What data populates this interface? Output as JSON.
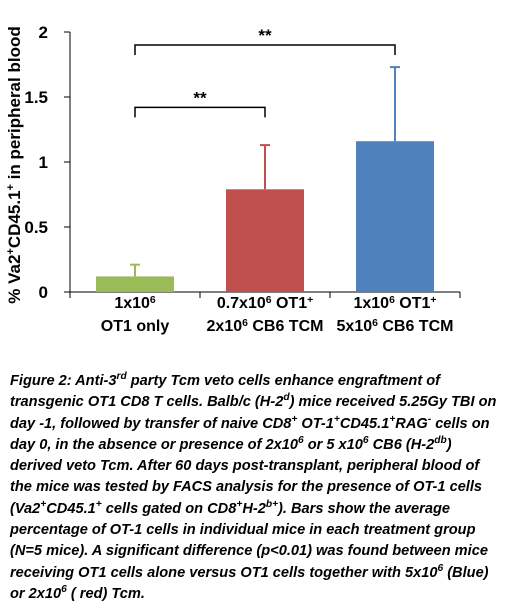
{
  "chart_data": {
    "type": "bar",
    "ylabel": "% Va2+CD45.1+ in peripheral blood",
    "ylabel_parts": [
      {
        "text": "% Va2",
        "sup": false
      },
      {
        "text": "+",
        "sup": true
      },
      {
        "text": "CD45.1",
        "sup": false
      },
      {
        "text": "+",
        "sup": true
      },
      {
        "text": " in peripheral blood",
        "sup": false
      }
    ],
    "ylim": [
      0,
      2
    ],
    "yticks": [
      "0",
      "0.5",
      "1",
      "1.5",
      "2"
    ],
    "grid": false,
    "categories": [
      {
        "line1": "1x10",
        "line1_sup": "6",
        "line1_tail": "",
        "line2": "OT1 only",
        "line2_sup": "",
        "line2_tail": ""
      },
      {
        "line1": "0.7x10",
        "line1_sup": "6",
        "line1_tail": " OT1",
        "line1_sup2": "+",
        "line2": "2x10",
        "line2_sup": "6",
        "line2_tail": " CB6 TCM"
      },
      {
        "line1": "1x10",
        "line1_sup": "6",
        "line1_tail": " OT1",
        "line1_sup2": "+",
        "line2": "5x10",
        "line2_sup": "6",
        "line2_tail": " CB6 TCM"
      }
    ],
    "values": [
      0.12,
      0.79,
      1.16
    ],
    "errors": [
      0.09,
      0.34,
      0.57
    ],
    "colors": [
      "#9bbb59",
      "#c0504d",
      "#4f81bd"
    ],
    "annotations": [
      {
        "from": 0,
        "to": 1,
        "label": "**",
        "y": 1.42
      },
      {
        "from": 0,
        "to": 2,
        "label": "**",
        "y": 1.9
      }
    ]
  },
  "caption": {
    "lines": [
      [
        {
          "t": "Figure 2: Anti-3"
        },
        {
          "t": "rd",
          "sup": true
        },
        {
          "t": " party Tcm veto cells enhance engraftment of"
        }
      ],
      [
        {
          "t": "transgenic OT1 CD8 T cells. Balb/c (H-2"
        },
        {
          "t": "d",
          "sup": true
        },
        {
          "t": ") mice received 5.25Gy TBI on"
        }
      ],
      [
        {
          "t": "day -1, followed by transfer of naive CD8"
        },
        {
          "t": "+",
          "sup": true
        },
        {
          "t": " OT-1"
        },
        {
          "t": "+",
          "sup": true
        },
        {
          "t": "CD45.1"
        },
        {
          "t": "+",
          "sup": true
        },
        {
          "t": "RAG"
        },
        {
          "t": "-",
          "sup": true
        },
        {
          "t": " cells on"
        }
      ],
      [
        {
          "t": "day 0, in the absence or presence of  2x10"
        },
        {
          "t": "6",
          "sup": true
        },
        {
          "t": " or 5 x10"
        },
        {
          "t": "6",
          "sup": true
        },
        {
          "t": " CB6 (H-2"
        },
        {
          "t": "db",
          "sup": true
        },
        {
          "t": ")"
        }
      ],
      [
        {
          "t": "derived veto Tcm. After 60 days post-transplant, peripheral blood of"
        }
      ],
      [
        {
          "t": "the mice was tested by FACS analysis for the presence of OT-1 cells"
        }
      ],
      [
        {
          "t": "(Va2"
        },
        {
          "t": "+",
          "sup": true
        },
        {
          "t": "CD45.1"
        },
        {
          "t": "+",
          "sup": true
        },
        {
          "t": " cells gated on CD8"
        },
        {
          "t": "+",
          "sup": true
        },
        {
          "t": "H-2"
        },
        {
          "t": "b+",
          "sup": true
        },
        {
          "t": "). Bars show the average"
        }
      ],
      [
        {
          "t": "percentage of OT-1 cells in individual mice in each treatment group"
        }
      ],
      [
        {
          "t": "(N=5 mice). A significant difference (p<0.01) was found between mice"
        }
      ],
      [
        {
          "t": "receiving OT1 cells alone versus OT1 cells together with 5x10"
        },
        {
          "t": "6",
          "sup": true
        },
        {
          "t": " (Blue)"
        }
      ],
      [
        {
          "t": "or 2x10"
        },
        {
          "t": "6",
          "sup": true
        },
        {
          "t": " ( red) Tcm."
        }
      ]
    ]
  }
}
